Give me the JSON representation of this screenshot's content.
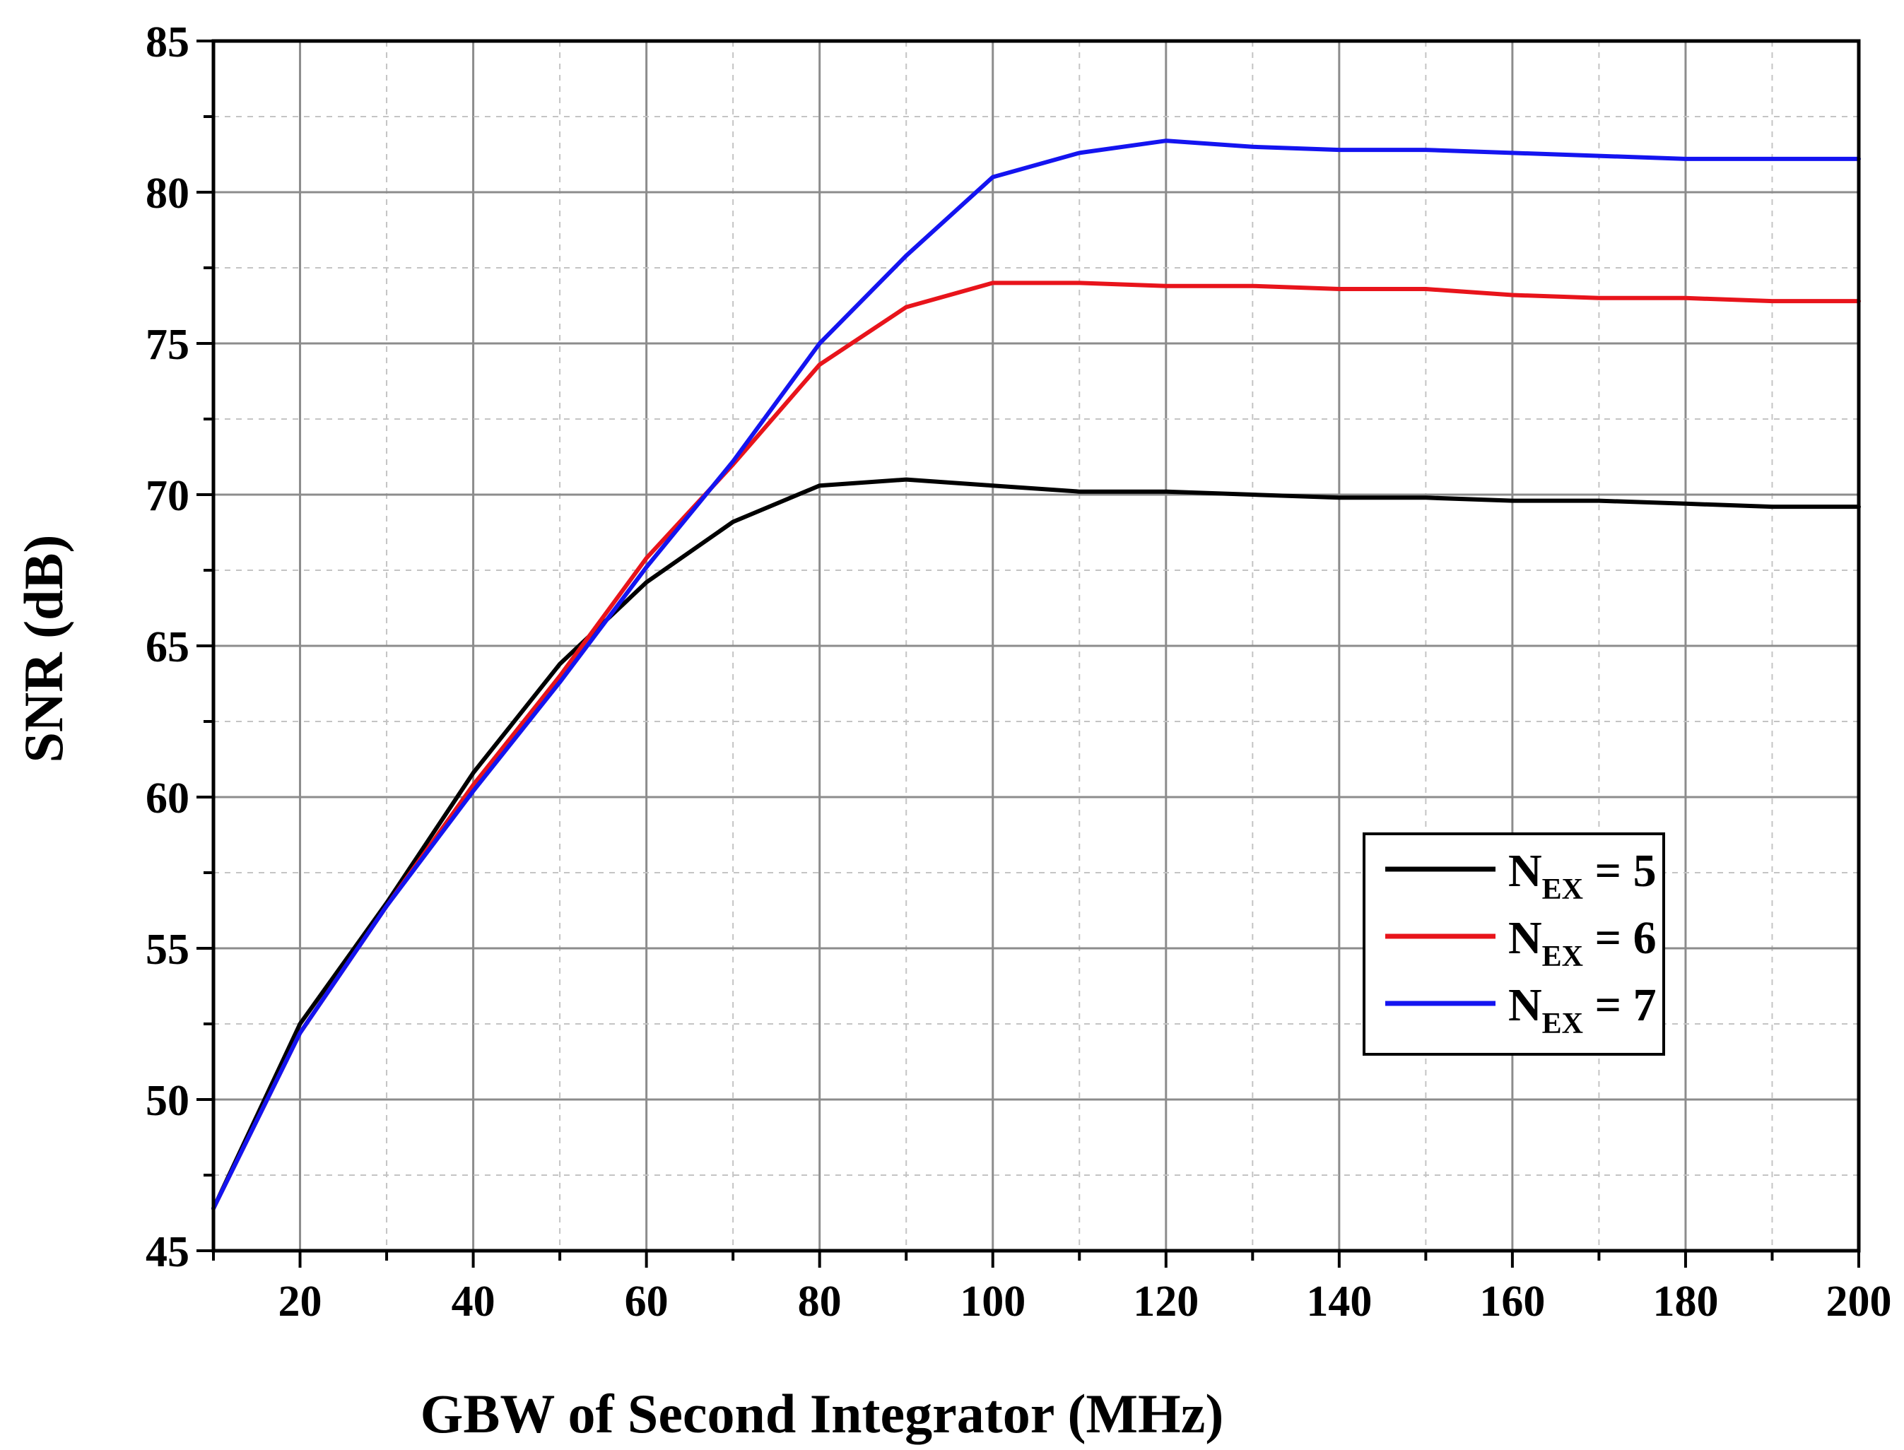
{
  "chart_data": {
    "type": "line",
    "title": "",
    "xlabel": "GBW of Second Integrator (MHz)",
    "ylabel": "SNR (dB)",
    "xlim": [
      10,
      200
    ],
    "ylim": [
      45,
      85
    ],
    "xticks": [
      20,
      40,
      60,
      80,
      100,
      120,
      140,
      160,
      180,
      200
    ],
    "yticks": [
      45,
      50,
      55,
      60,
      65,
      70,
      75,
      80,
      85
    ],
    "grid": true,
    "legend_position": "center-right",
    "series": [
      {
        "name": "N_EX = 5",
        "legend_main": "N",
        "legend_sub": "EX",
        "legend_rest": " = 5",
        "color": "#000000",
        "x": [
          10,
          20,
          30,
          40,
          50,
          60,
          70,
          80,
          90,
          100,
          110,
          120,
          130,
          140,
          150,
          160,
          170,
          180,
          190,
          200
        ],
        "values": [
          46.4,
          52.5,
          56.5,
          60.8,
          64.4,
          67.1,
          69.1,
          70.3,
          70.5,
          70.3,
          70.1,
          70.1,
          70.0,
          69.9,
          69.9,
          69.8,
          69.8,
          69.7,
          69.6,
          69.6
        ]
      },
      {
        "name": "N_EX = 6",
        "legend_main": "N",
        "legend_sub": "EX",
        "legend_rest": " = 6",
        "color": "#e8141b",
        "x": [
          10,
          20,
          30,
          40,
          50,
          60,
          70,
          80,
          90,
          100,
          110,
          120,
          130,
          140,
          150,
          160,
          170,
          180,
          190,
          200
        ],
        "values": [
          46.4,
          52.2,
          56.4,
          60.4,
          64.0,
          67.9,
          71.0,
          74.3,
          76.2,
          77.0,
          77.0,
          76.9,
          76.9,
          76.8,
          76.8,
          76.6,
          76.5,
          76.5,
          76.4,
          76.4
        ]
      },
      {
        "name": "N_EX = 7",
        "legend_main": "N",
        "legend_sub": "EX",
        "legend_rest": " = 7",
        "color": "#1414f0",
        "x": [
          10,
          20,
          30,
          40,
          50,
          60,
          70,
          80,
          90,
          100,
          110,
          120,
          130,
          140,
          150,
          160,
          170,
          180,
          190,
          200
        ],
        "values": [
          46.4,
          52.2,
          56.4,
          60.2,
          63.8,
          67.6,
          71.1,
          75.0,
          77.9,
          80.5,
          81.3,
          81.7,
          81.5,
          81.4,
          81.4,
          81.3,
          81.2,
          81.1,
          81.1,
          81.1
        ]
      }
    ]
  }
}
